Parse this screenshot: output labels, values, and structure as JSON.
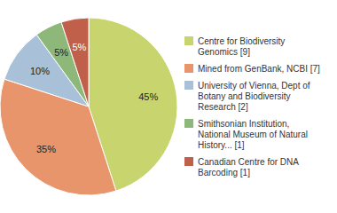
{
  "chart_data": {
    "type": "pie",
    "categories": [
      "Centre for Biodiversity\nGenomics [9]",
      "Mined from GenBank, NCBI [7]",
      "University of Vienna, Dept of\nBotany and Biodiversity\nResearch [2]",
      "Smithsonian Institution,\nNational Museum of Natural\nHistory... [1]",
      "Canadian Centre for DNA\nBarcoding [1]"
    ],
    "values": [
      45,
      35,
      10,
      5,
      5
    ],
    "value_labels": [
      "45%",
      "35%",
      "10%",
      "5%",
      "5%"
    ],
    "colors": [
      "#c8d46e",
      "#e8956b",
      "#a8c0d8",
      "#8db87a",
      "#c0604a"
    ],
    "data_labels": true,
    "legend": "right"
  }
}
